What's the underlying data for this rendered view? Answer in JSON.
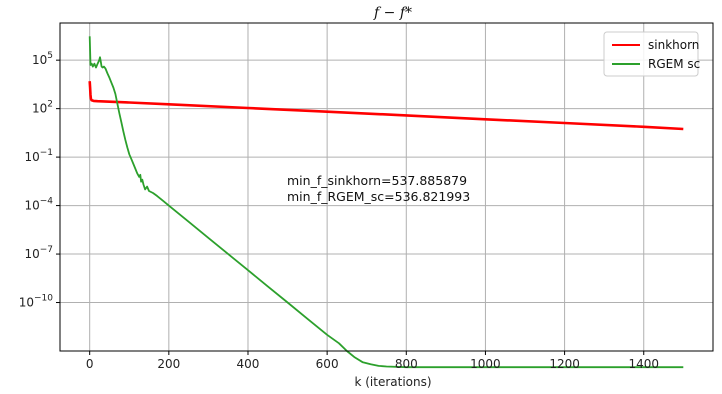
{
  "chart_data": {
    "type": "line",
    "title": "f − f*",
    "xlabel": "k (iterations)",
    "ylabel": "",
    "xlim": [
      -75,
      1575
    ],
    "ylog": true,
    "ylim_exponent": [
      -13,
      7.3
    ],
    "grid": true,
    "legend_position": "top-right",
    "x_ticks": [
      0,
      200,
      400,
      600,
      800,
      1000,
      1200,
      1400
    ],
    "x_tick_labels": [
      "0",
      "200",
      "400",
      "600",
      "800",
      "1000",
      "1200",
      "1400"
    ],
    "y_ticks": [
      100000.0,
      100.0,
      0.1,
      0.0001,
      1e-07,
      1e-10
    ],
    "y_tick_labels": [
      {
        "base": "10",
        "exp": "5"
      },
      {
        "base": "10",
        "exp": "2"
      },
      {
        "base": "10",
        "exp": "−1"
      },
      {
        "base": "10",
        "exp": "−4"
      },
      {
        "base": "10",
        "exp": "−7"
      },
      {
        "base": "10",
        "exp": "−10"
      }
    ],
    "annotations": [
      "min_f_sinkhorn=537.885879",
      "min_f_RGEM_sc=536.821993"
    ],
    "series": [
      {
        "name": "sinkhorn",
        "color": "#ff0000",
        "x": [
          0,
          1,
          2,
          3,
          5,
          10,
          20,
          50,
          100,
          200,
          400,
          600,
          800,
          1000,
          1200,
          1400,
          1500
        ],
        "y": [
          5000,
          2000,
          700,
          400,
          330,
          300,
          290,
          270,
          240,
          185,
          110,
          65,
          38,
          22,
          13,
          7.5,
          5.5
        ]
      },
      {
        "name": "RGEM sc",
        "color": "#2ca02c",
        "x": [
          0,
          2,
          5,
          8,
          12,
          16,
          20,
          24,
          26,
          28,
          30,
          33,
          36,
          40,
          45,
          50,
          55,
          60,
          65,
          70,
          75,
          80,
          85,
          90,
          95,
          100,
          105,
          110,
          115,
          120,
          125,
          128,
          130,
          133,
          136,
          140,
          145,
          150,
          160,
          170,
          185,
          200,
          250,
          300,
          350,
          400,
          450,
          500,
          550,
          600,
          630,
          650,
          670,
          690,
          710,
          730,
          750,
          800,
          1000,
          1200,
          1400,
          1500
        ],
        "y": [
          3000000,
          50000,
          60000,
          40000,
          60000,
          35000,
          60000,
          100000,
          150000,
          80000,
          40000,
          35000,
          40000,
          30000,
          15000,
          8000,
          4000,
          2000,
          800,
          200,
          50,
          15,
          4,
          1.2,
          0.4,
          0.15,
          0.08,
          0.04,
          0.02,
          0.01,
          0.006,
          0.008,
          0.003,
          0.004,
          0.002,
          0.001,
          0.0015,
          0.0008,
          0.0006,
          0.0004,
          0.0002,
          0.0001,
          1e-05,
          1e-06,
          1e-07,
          1e-08,
          1e-09,
          1e-10,
          1e-11,
          1e-12,
          3e-13,
          1e-13,
          4e-14,
          2e-14,
          1.5e-14,
          1.2e-14,
          1.1e-14,
          1e-14,
          1e-14,
          1e-14,
          1e-14,
          1e-14
        ]
      }
    ]
  }
}
